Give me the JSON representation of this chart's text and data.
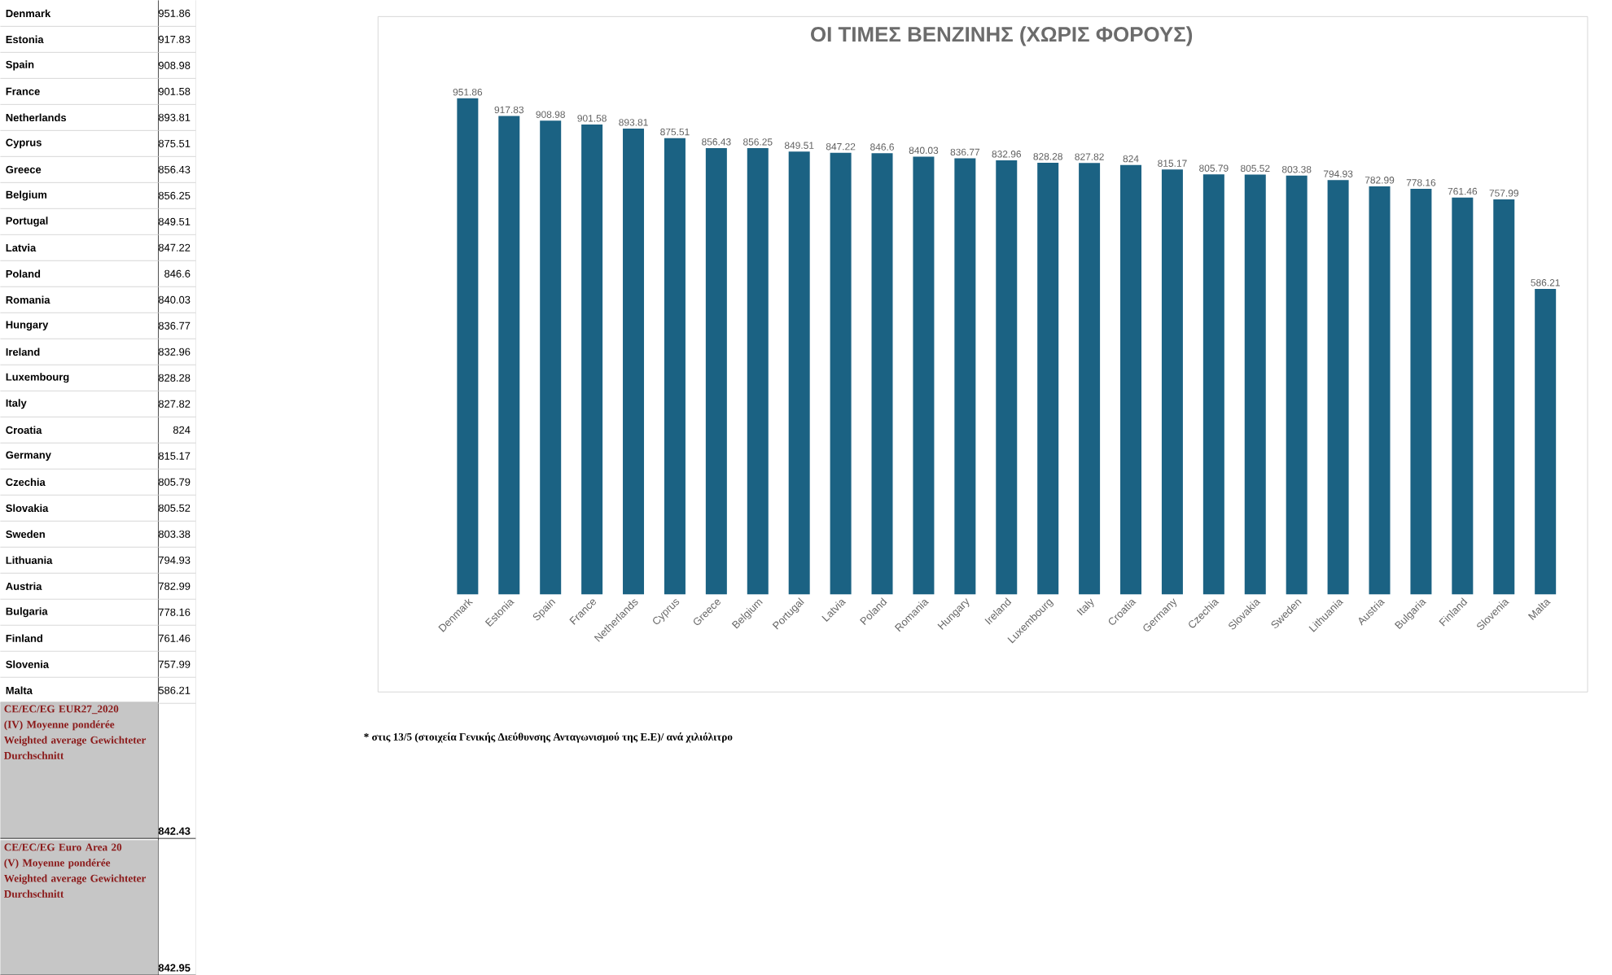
{
  "chart_data": [
    {
      "type": "other",
      "categories": [
        "Denmark",
        "Estonia",
        "Spain",
        "France",
        "Netherlands",
        "Cyprus",
        "Greece",
        "Belgium",
        "Portugal",
        "Latvia",
        "Poland",
        "Romania",
        "Hungary",
        "Ireland",
        "Luxembourg",
        "Italy",
        "Croatia",
        "Germany",
        "Czechia",
        "Slovakia",
        "Sweden",
        "Lithuania",
        "Austria",
        "Bulgaria",
        "Finland",
        "Slovenia",
        "Malta"
      ],
      "values": [
        951.86,
        917.83,
        908.98,
        901.58,
        893.81,
        875.51,
        856.43,
        856.25,
        849.51,
        847.22,
        846.6,
        840.03,
        836.77,
        832.96,
        828.28,
        827.82,
        824,
        815.17,
        805.79,
        805.52,
        803.38,
        794.93,
        782.99,
        778.16,
        761.46,
        757.99,
        586.21
      ],
      "data_labels": true,
      "annotations": [
        "CE/EC/EG EUR27_2020 (IV) Moyenne pondérée Weighted average Gewichteter Durchschnitt",
        "842.43",
        "CE/EC/EG Euro Area 20 (V) Moyenne pondérée Weighted average Gewichteter Durchschnitt",
        "842.95"
      ]
    },
    {
      "type": "bar",
      "title": "ΟΙ ΤΙΜΕΣ ΒΕΝΖΙΝΗΣ (ΧΩΡΙΣ ΦΟΡΟΥΣ)",
      "categories": [
        "Denmark",
        "Estonia",
        "Spain",
        "France",
        "Netherlands",
        "Cyprus",
        "Greece",
        "Belgium",
        "Portugal",
        "Latvia",
        "Poland",
        "Romania",
        "Hungary",
        "Ireland",
        "Luxembourg",
        "Italy",
        "Croatia",
        "Germany",
        "Czechia",
        "Slovakia",
        "Sweden",
        "Lithuania",
        "Austria",
        "Bulgaria",
        "Finland",
        "Slovenia",
        "Malta"
      ],
      "values": [
        951.86,
        917.83,
        908.98,
        901.58,
        893.81,
        875.51,
        856.43,
        856.25,
        849.51,
        847.22,
        846.6,
        840.03,
        836.77,
        832.96,
        828.28,
        827.82,
        824,
        815.17,
        805.79,
        805.52,
        803.38,
        794.93,
        782.99,
        778.16,
        761.46,
        757.99,
        586.21
      ],
      "color": "#1b6283",
      "data_labels": true,
      "annotations": [
        "* στις 13/5 (στοιχεία Γενικής Διεύθυνσης Ανταγωνισμού της Ε.Ε)/ ανά χιλιόλιτρο"
      ]
    }
  ]
}
